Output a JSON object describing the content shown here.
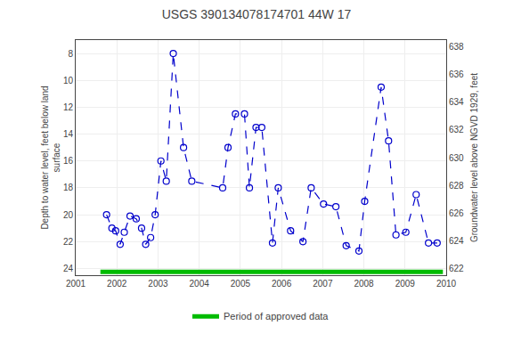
{
  "chart_data": {
    "type": "line",
    "title": "USGS 390134078174701 44W 17",
    "ylabel": "Depth to water level, feet below land\nsurface",
    "y2label": "Groundwater level above NGVD 1929, feet",
    "xlim": [
      2001,
      2010
    ],
    "xticks": [
      2001,
      2002,
      2003,
      2004,
      2005,
      2006,
      2007,
      2008,
      2009,
      2010
    ],
    "ylim": [
      24.5,
      7.0
    ],
    "yticks": [
      8,
      10,
      12,
      14,
      16,
      18,
      20,
      22,
      24
    ],
    "y2lim": [
      621.5,
      638.5
    ],
    "y2ticks": [
      622,
      624,
      626,
      628,
      630,
      632,
      634,
      636,
      638
    ],
    "grid": true,
    "legend": "bottom",
    "series": [
      {
        "color": "#0000cc",
        "marker": "circle",
        "line_style": "dashed",
        "x": [
          2001.75,
          2001.88,
          2001.97,
          2002.08,
          2002.18,
          2002.32,
          2002.47,
          2002.6,
          2002.7,
          2002.82,
          2002.93,
          2003.07,
          2003.2,
          2003.37,
          2003.62,
          2003.82,
          2004.57,
          2004.7,
          2004.88,
          2005.1,
          2005.22,
          2005.38,
          2005.52,
          2005.78,
          2005.92,
          2006.22,
          2006.52,
          2006.72,
          2007.02,
          2007.32,
          2007.57,
          2007.88,
          2008.02,
          2008.42,
          2008.6,
          2008.78,
          2009.02,
          2009.27,
          2009.57,
          2009.78
        ],
        "values": [
          20.0,
          21.0,
          21.2,
          22.2,
          21.3,
          20.1,
          20.3,
          21.0,
          22.2,
          21.7,
          20.0,
          16.0,
          17.5,
          8.0,
          15.0,
          17.5,
          18.0,
          15.0,
          12.5,
          12.5,
          18.0,
          13.5,
          13.5,
          22.1,
          18.0,
          21.2,
          22.0,
          18.0,
          19.2,
          19.4,
          22.3,
          22.7,
          19.0,
          10.5,
          14.5,
          21.5,
          21.3,
          18.5,
          22.1,
          22.1
        ]
      },
      {
        "name": "Period of approved data",
        "color": "#00bb00",
        "line_style": "solid",
        "x": [
          2001.6,
          2009.92
        ],
        "values": [
          24.25,
          24.25
        ]
      }
    ]
  }
}
